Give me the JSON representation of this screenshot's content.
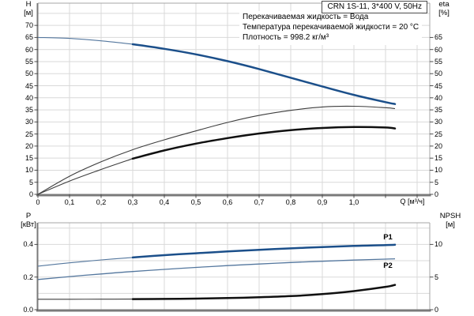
{
  "window": {
    "title": "CRN 1S-11, 3*400 V, 50Hz"
  },
  "info_lines": [
    "Перекачиваемая жидкость = Вода",
    "Температура перекачиваемой жидкости = 20 °C",
    "Плотность = 998.2 кг/м³"
  ],
  "axes_titles": {
    "top_left": {
      "line1": "H",
      "line2": "[м]"
    },
    "top_right": {
      "line1": "eta",
      "line2": "[%]"
    },
    "bottom_left": {
      "line1": "P",
      "line2": "[кВт]"
    },
    "bottom_right": {
      "line1": "NPSH",
      "line2": "[м]"
    },
    "x_unit": "Q [м³/ч]"
  },
  "colors": {
    "curve_blue": "#1b4f8a",
    "curve_blue_thin": "#54779e",
    "curve_black": "#101010",
    "curve_black_thin": "#3d3d3d",
    "grid": "#d9d9d9",
    "border": "#a6a6a6",
    "axis_heavy": "#7a7a7a",
    "tick": "#4d4d4d",
    "text": "#000000"
  },
  "chart_data": [
    {
      "type": "line",
      "name": "head-efficiency-panel",
      "x_axis": {
        "label": "Q [м³/ч]",
        "min": 0,
        "max": 1.24,
        "grid_step": 0.1,
        "tick_values": [
          0,
          0.1,
          0.2,
          0.3,
          0.4,
          0.5,
          0.6,
          0.7,
          0.8,
          0.9,
          1.0
        ],
        "tick_labels": [
          "0",
          "0,1",
          "0,2",
          "0,3",
          "0,4",
          "0,5",
          "0,6",
          "0,7",
          "0,8",
          "0,9",
          "1,0"
        ],
        "grid_max_line": 1.2
      },
      "y_left": {
        "label": "H [м]",
        "min": 0,
        "max": 79,
        "grid_step": 5,
        "tick_values": [
          70,
          65,
          60,
          55,
          50,
          45,
          40,
          35,
          30,
          25,
          20,
          15,
          10,
          5,
          0
        ]
      },
      "y_right": {
        "label": "eta [%]",
        "min": 0,
        "tick_values": [
          65,
          60,
          55,
          50,
          45,
          40,
          35,
          30,
          25,
          20,
          15,
          10,
          5,
          0
        ]
      },
      "duty_range": [
        0.3,
        1.13
      ],
      "series": [
        {
          "name": "H",
          "axis": "H",
          "color": "blue",
          "thick_from": 0.3,
          "points": [
            [
              0,
              65
            ],
            [
              0.1,
              64.6
            ],
            [
              0.2,
              63.6
            ],
            [
              0.3,
              62.2
            ],
            [
              0.4,
              60.3
            ],
            [
              0.5,
              58.0
            ],
            [
              0.6,
              55.2
            ],
            [
              0.7,
              51.9
            ],
            [
              0.8,
              48.3
            ],
            [
              0.9,
              44.7
            ],
            [
              1.0,
              41.2
            ],
            [
              1.1,
              38.2
            ],
            [
              1.13,
              37.4
            ]
          ]
        },
        {
          "name": "eta-pump",
          "axis": "eta",
          "color": "black",
          "thick_from": null,
          "points": [
            [
              0,
              0
            ],
            [
              0.1,
              7.5
            ],
            [
              0.2,
              13.5
            ],
            [
              0.3,
              18.5
            ],
            [
              0.4,
              22.6
            ],
            [
              0.5,
              26.3
            ],
            [
              0.6,
              29.8
            ],
            [
              0.7,
              32.7
            ],
            [
              0.8,
              34.8
            ],
            [
              0.9,
              36.2
            ],
            [
              1.0,
              36.5
            ],
            [
              1.1,
              35.9
            ],
            [
              1.13,
              35.5
            ]
          ]
        },
        {
          "name": "eta-pump-motor",
          "axis": "eta",
          "color": "black",
          "thick_from": 0.3,
          "points": [
            [
              0,
              0
            ],
            [
              0.1,
              5.5
            ],
            [
              0.2,
              10.3
            ],
            [
              0.3,
              14.8
            ],
            [
              0.4,
              18.2
            ],
            [
              0.5,
              21.0
            ],
            [
              0.6,
              23.3
            ],
            [
              0.7,
              25.2
            ],
            [
              0.8,
              26.6
            ],
            [
              0.9,
              27.5
            ],
            [
              1.0,
              27.9
            ],
            [
              1.1,
              27.7
            ],
            [
              1.13,
              27.3
            ]
          ]
        }
      ]
    },
    {
      "type": "line",
      "name": "power-npsh-panel",
      "x_axis": {
        "shared_with_top": true,
        "grid_step": 0.1,
        "grid_max_line": 1.2
      },
      "y_left": {
        "label": "P [кВт]",
        "min": 0,
        "max": 0.53,
        "grid_step": 0.1,
        "tick_values": [
          0.4,
          0.2,
          0.0
        ],
        "tick_labels": [
          "0.4",
          "0.2",
          "0.0"
        ]
      },
      "y_right": {
        "label": "NPSH [м]",
        "min": 0,
        "tick_values": [
          10,
          5,
          0
        ],
        "tick_labels": [
          "10",
          "5",
          "0"
        ]
      },
      "series": [
        {
          "name": "P1",
          "label": "P1",
          "axis": "P",
          "color": "blue",
          "thick_from": 0.3,
          "points": [
            [
              0,
              0.267
            ],
            [
              0.1,
              0.287
            ],
            [
              0.2,
              0.305
            ],
            [
              0.3,
              0.32
            ],
            [
              0.4,
              0.334
            ],
            [
              0.5,
              0.346
            ],
            [
              0.6,
              0.357
            ],
            [
              0.7,
              0.367
            ],
            [
              0.8,
              0.376
            ],
            [
              0.9,
              0.384
            ],
            [
              1.0,
              0.391
            ],
            [
              1.1,
              0.396
            ],
            [
              1.13,
              0.398
            ]
          ]
        },
        {
          "name": "P2",
          "label": "P2",
          "axis": "P",
          "color": "blue",
          "thick_from": null,
          "points": [
            [
              0,
              0.185
            ],
            [
              0.1,
              0.203
            ],
            [
              0.2,
              0.219
            ],
            [
              0.3,
              0.234
            ],
            [
              0.4,
              0.247
            ],
            [
              0.5,
              0.259
            ],
            [
              0.6,
              0.27
            ],
            [
              0.7,
              0.28
            ],
            [
              0.8,
              0.289
            ],
            [
              0.9,
              0.297
            ],
            [
              1.0,
              0.304
            ],
            [
              1.1,
              0.31
            ],
            [
              1.13,
              0.312
            ]
          ]
        },
        {
          "name": "NPSH",
          "axis": "NPSH",
          "color": "black",
          "thick_from": 0.3,
          "points": [
            [
              0,
              1.6
            ],
            [
              0.1,
              1.6
            ],
            [
              0.2,
              1.61
            ],
            [
              0.3,
              1.62
            ],
            [
              0.4,
              1.65
            ],
            [
              0.5,
              1.7
            ],
            [
              0.6,
              1.78
            ],
            [
              0.7,
              1.9
            ],
            [
              0.8,
              2.08
            ],
            [
              0.9,
              2.38
            ],
            [
              1.0,
              2.85
            ],
            [
              1.1,
              3.5
            ],
            [
              1.13,
              3.8
            ]
          ]
        }
      ]
    }
  ]
}
